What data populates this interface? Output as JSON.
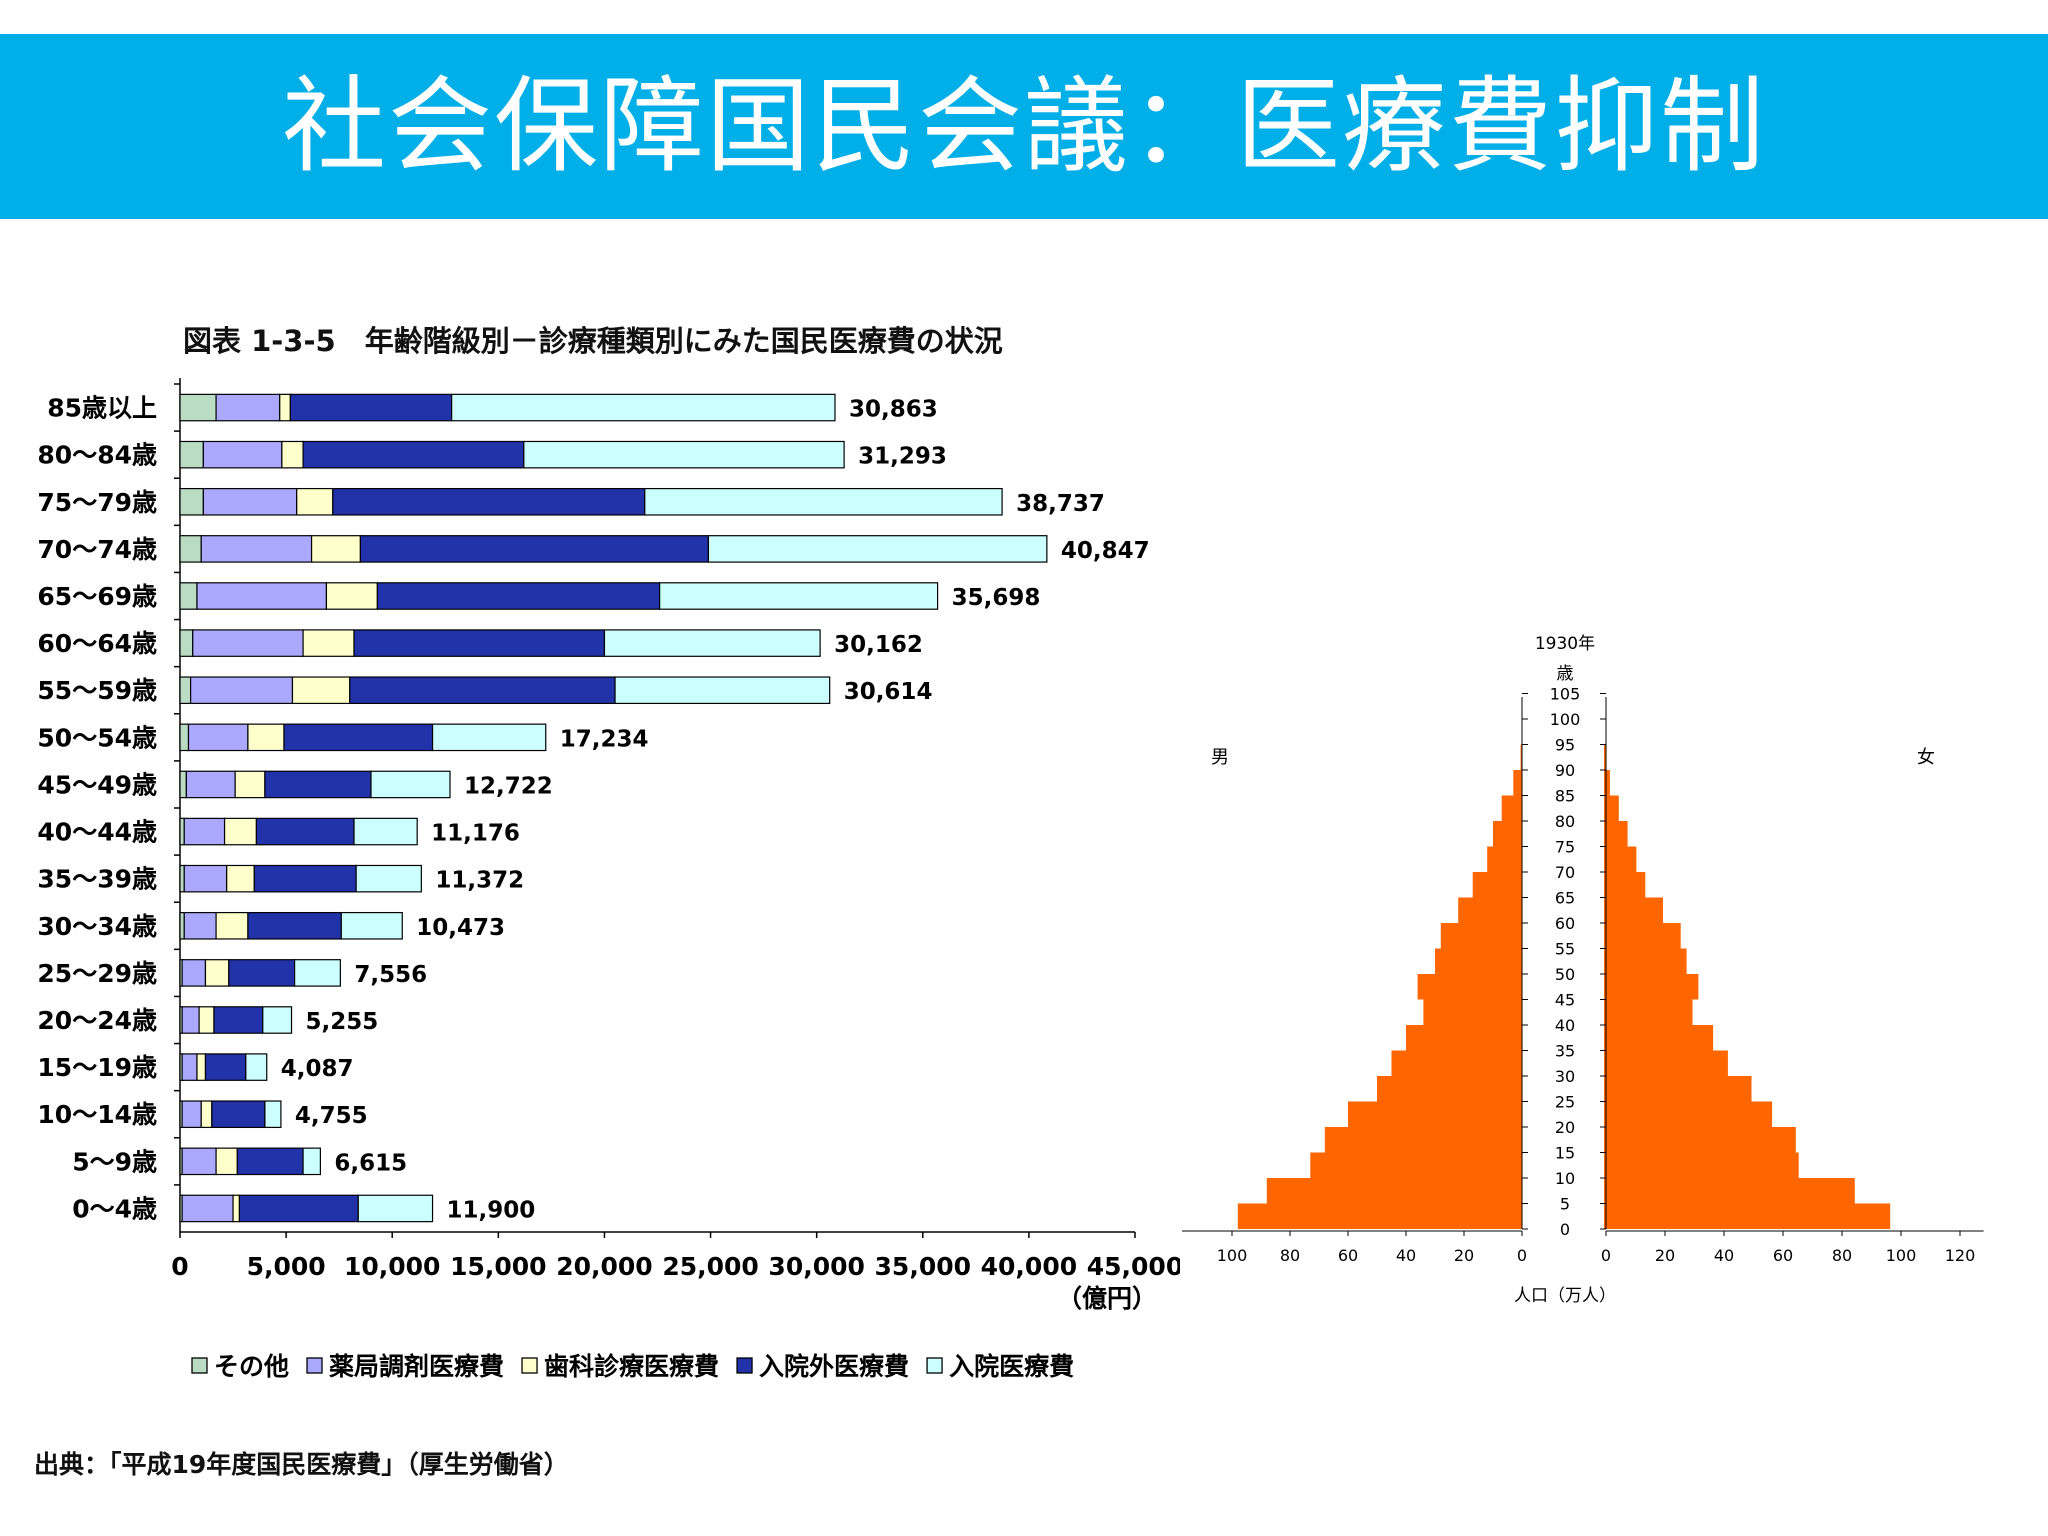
{
  "header": {
    "title": "社会保障国民会議：医療費抑制"
  },
  "source_note": "出典：「平成19年度国民医療費」（厚生労働省）",
  "colors": {
    "header_bg": "#00aee8",
    "other": "#b9dcc2",
    "pharmacy": "#aaa9ff",
    "dental": "#ffffcc",
    "outpatient": "#2233aa",
    "inpatient": "#ccffff",
    "pyramid": "#ff6600"
  },
  "chart_data": [
    {
      "type": "bar",
      "orientation": "horizontal",
      "stacked": true,
      "title": "図表 1-3-5　年齢階級別－診療種類別にみた国民医療費の状況",
      "xlabel": "（億円）",
      "xlim": [
        0,
        45000
      ],
      "xticks": [
        "0",
        "5,000",
        "10,000",
        "15,000",
        "20,000",
        "25,000",
        "30,000",
        "35,000",
        "40,000",
        "45,000"
      ],
      "categories": [
        "85歳以上",
        "80～84歳",
        "75～79歳",
        "70～74歳",
        "65～69歳",
        "60～64歳",
        "55～59歳",
        "50～54歳",
        "45～49歳",
        "40～44歳",
        "35～39歳",
        "30～34歳",
        "25～29歳",
        "20～24歳",
        "15～19歳",
        "10～14歳",
        "5～9歳",
        "0～4歳"
      ],
      "totals": [
        30863,
        31293,
        38737,
        40847,
        35698,
        30162,
        30614,
        17234,
        12722,
        11176,
        11372,
        10473,
        7556,
        5255,
        4087,
        4755,
        6615,
        11900
      ],
      "total_labels": [
        "30,863",
        "31,293",
        "38,737",
        "40,847",
        "35,698",
        "30,162",
        "30,614",
        "17,234",
        "12,722",
        "11,176",
        "11,372",
        "10,473",
        "7,556",
        "5,255",
        "4,087",
        "4,755",
        "6,615",
        "11,900"
      ],
      "legend": [
        {
          "marker": "□",
          "label": "その他"
        },
        {
          "marker": "□",
          "label": "薬局調剤医療費"
        },
        {
          "marker": "□",
          "label": "歯科診療医療費"
        },
        {
          "marker": "■",
          "label": "入院外医療費"
        },
        {
          "marker": "□",
          "label": "入院医療費"
        }
      ],
      "legend_position": "bottom",
      "series": [
        {
          "name": "その他",
          "values": [
            1700,
            1100,
            1100,
            1000,
            800,
            600,
            500,
            400,
            300,
            200,
            200,
            200,
            100,
            100,
            100,
            100,
            100,
            100
          ]
        },
        {
          "name": "薬局調剤医療費",
          "values": [
            3000,
            3700,
            4400,
            5200,
            6100,
            5200,
            4800,
            2800,
            2300,
            1900,
            2000,
            1500,
            1100,
            800,
            700,
            900,
            1600,
            2400
          ]
        },
        {
          "name": "歯科診療医療費",
          "values": [
            500,
            1000,
            1700,
            2300,
            2400,
            2400,
            2700,
            1700,
            1400,
            1500,
            1300,
            1500,
            1100,
            700,
            400,
            500,
            1000,
            300
          ]
        },
        {
          "name": "入院外医療費",
          "values": [
            7600,
            10400,
            14700,
            16400,
            13300,
            11800,
            12500,
            7000,
            5000,
            4600,
            4800,
            4400,
            3100,
            2300,
            1900,
            2500,
            3100,
            5600
          ]
        },
        {
          "name": "入院医療費",
          "values": [
            18063,
            15093,
            16837,
            15947,
            13098,
            10162,
            10114,
            5334,
            3722,
            2976,
            3072,
            2873,
            2156,
            1355,
            987,
            755,
            815,
            3500
          ]
        }
      ]
    },
    {
      "type": "bar",
      "orientation": "horizontal",
      "subtype": "population-pyramid",
      "title": "1930年",
      "ylabel": "歳",
      "xlabel": "人口（万人）",
      "left_label": "男",
      "right_label": "女",
      "yticks": [
        "0",
        "5",
        "10",
        "15",
        "20",
        "25",
        "30",
        "35",
        "40",
        "45",
        "50",
        "55",
        "60",
        "65",
        "70",
        "75",
        "80",
        "85",
        "90",
        "95",
        "100",
        "105"
      ],
      "xticks_left": [
        "100",
        "80",
        "60",
        "40",
        "20",
        "0"
      ],
      "xticks_right": [
        "0",
        "20",
        "40",
        "60",
        "80",
        "100",
        "120"
      ],
      "xlim_left": [
        0,
        110
      ],
      "xlim_right": [
        0,
        128
      ],
      "ages": [
        0,
        5,
        10,
        15,
        20,
        25,
        30,
        35,
        40,
        45,
        50,
        55,
        60,
        65,
        70,
        75,
        80,
        85,
        90
      ],
      "male": [
        98,
        88,
        73,
        68,
        60,
        50,
        45,
        40,
        34,
        36,
        30,
        28,
        22,
        17,
        12,
        10,
        7,
        3,
        0.5
      ],
      "female": [
        97,
        85,
        66,
        65,
        57,
        50,
        42,
        37,
        30,
        32,
        28,
        26,
        20,
        14,
        11,
        8,
        5,
        2,
        0.5
      ]
    }
  ]
}
